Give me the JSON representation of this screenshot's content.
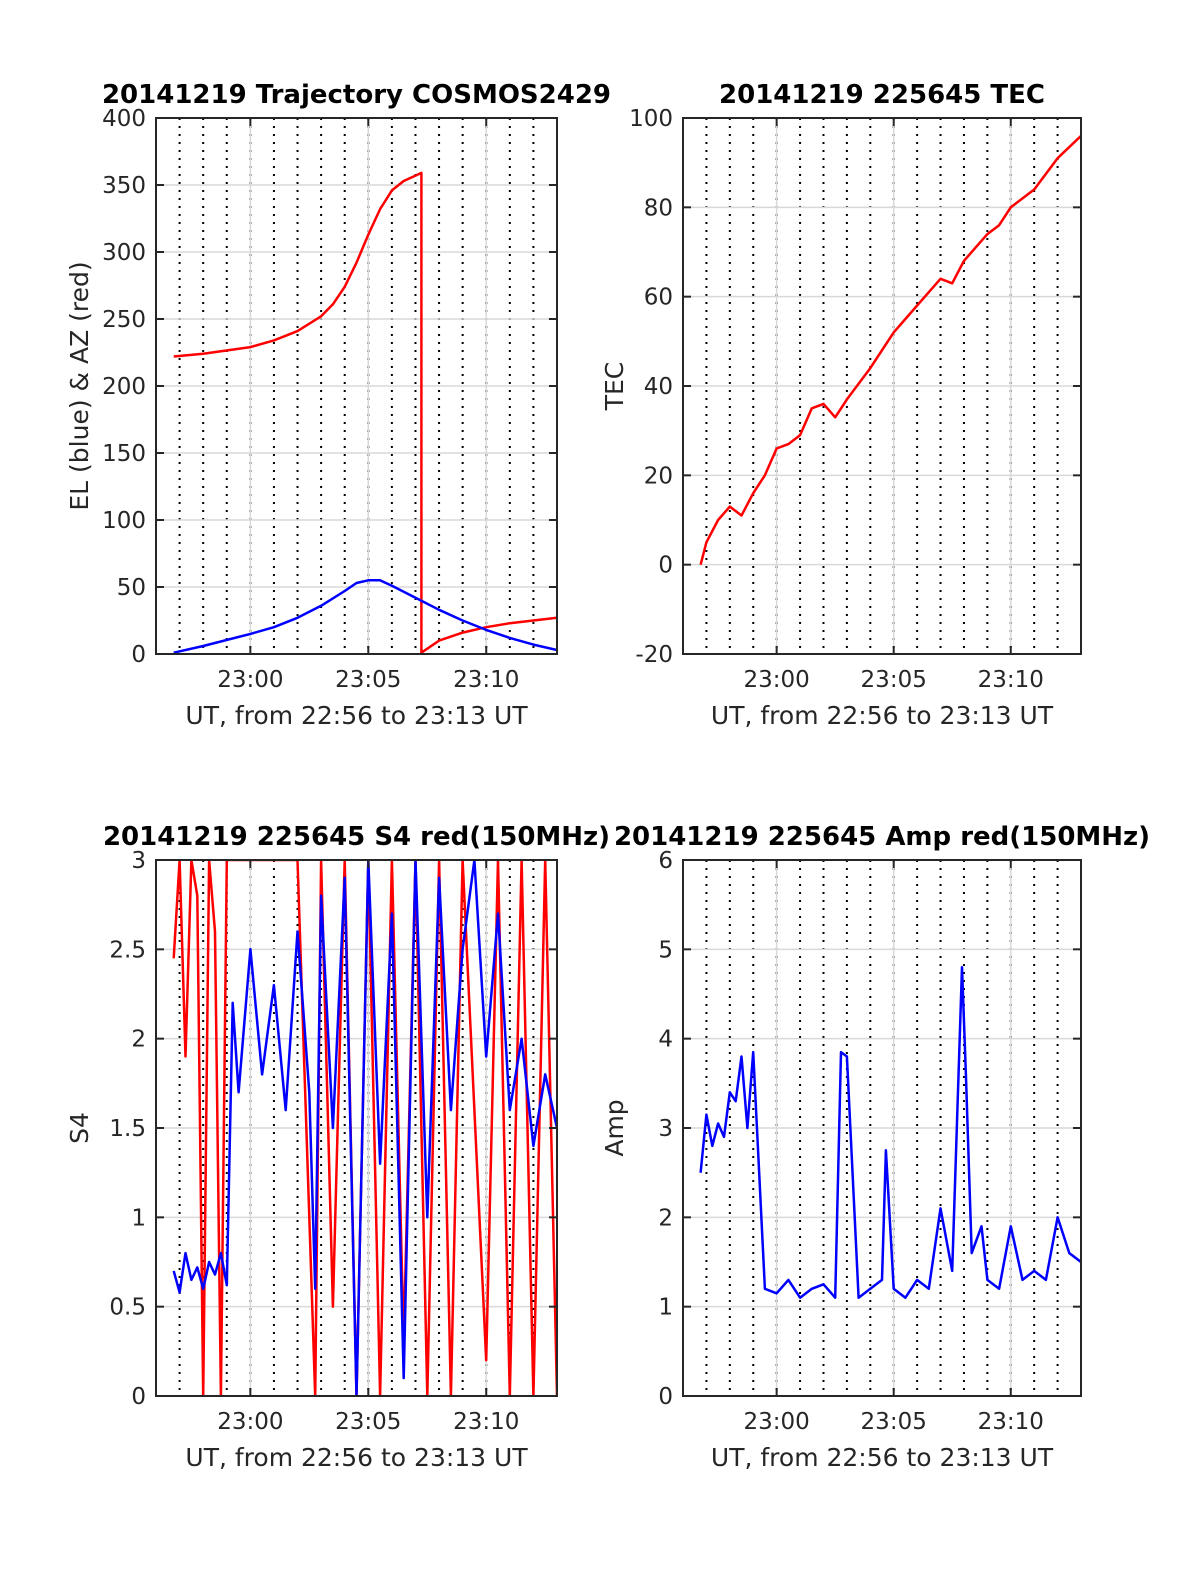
{
  "colors": {
    "red": "#ff0000",
    "blue": "#0000ff",
    "grid": "#d9d9d9",
    "axis": "#262626"
  },
  "x_axis_common": {
    "label": "UT, from 22:56 to 23:13 UT",
    "tick_labels": [
      "23:00",
      "23:05",
      "23:10"
    ]
  },
  "chart_data": [
    {
      "type": "line",
      "title": "20141219 Trajectory COSMOS2429",
      "xlabel": "UT, from 22:56 to 23:13 UT",
      "ylabel": "EL (blue) & AZ (red)",
      "xlim": [
        "22:56:00",
        "23:13:00"
      ],
      "ylim": [
        0,
        400
      ],
      "yticks": [
        0,
        50,
        100,
        150,
        200,
        250,
        300,
        350,
        400
      ],
      "xticks": [
        "23:00",
        "23:05",
        "23:10"
      ],
      "grid": true,
      "series": [
        {
          "color": "red",
          "x": [
            "22:56:45",
            "22:58:00",
            "23:00:00",
            "23:01:00",
            "23:02:00",
            "23:03:00",
            "23:03:30",
            "23:04:00",
            "23:04:30",
            "23:05:00",
            "23:05:30",
            "23:06:00",
            "23:06:30",
            "23:07:00",
            "23:07:15",
            "23:07:15",
            "23:08:00",
            "23:09:00",
            "23:10:00",
            "23:11:00",
            "23:12:00",
            "23:13:00"
          ],
          "y": [
            222,
            224,
            229,
            234,
            241,
            252,
            261,
            274,
            292,
            313,
            332,
            346,
            353,
            357,
            359,
            1,
            10,
            16,
            20,
            23,
            25,
            27
          ]
        },
        {
          "color": "blue",
          "x": [
            "22:56:45",
            "22:58:00",
            "23:00:00",
            "23:01:00",
            "23:02:00",
            "23:03:00",
            "23:04:00",
            "23:04:30",
            "23:05:00",
            "23:05:30",
            "23:06:00",
            "23:07:00",
            "23:08:00",
            "23:09:00",
            "23:10:00",
            "23:11:00",
            "23:12:00",
            "23:13:00"
          ],
          "y": [
            1,
            6,
            15,
            20,
            27,
            36,
            47,
            53,
            55,
            55,
            51,
            42,
            33,
            25,
            18,
            12,
            7,
            3
          ]
        }
      ]
    },
    {
      "type": "line",
      "title": "20141219 225645 TEC",
      "xlabel": "UT, from 22:56 to 23:13 UT",
      "ylabel": "TEC",
      "xlim": [
        "22:56:00",
        "23:13:00"
      ],
      "ylim": [
        -20,
        100
      ],
      "yticks": [
        -20,
        0,
        20,
        40,
        60,
        80,
        100
      ],
      "xticks": [
        "23:00",
        "23:05",
        "23:10"
      ],
      "grid": true,
      "series": [
        {
          "color": "red",
          "x": [
            "22:56:45",
            "22:57:00",
            "22:57:30",
            "22:58:00",
            "22:58:30",
            "22:59:00",
            "22:59:30",
            "23:00:00",
            "23:00:30",
            "23:01:00",
            "23:01:30",
            "23:02:00",
            "23:02:30",
            "23:03:00",
            "23:04:00",
            "23:05:00",
            "23:05:30",
            "23:06:00",
            "23:06:30",
            "23:07:00",
            "23:07:30",
            "23:08:00",
            "23:09:00",
            "23:09:30",
            "23:10:00",
            "23:10:30",
            "23:11:00",
            "23:12:00",
            "23:13:00"
          ],
          "y": [
            0,
            5,
            10,
            13,
            11,
            16,
            20,
            26,
            27,
            29,
            35,
            36,
            33,
            37,
            44,
            52,
            55,
            58,
            61,
            64,
            63,
            68,
            74,
            76,
            80,
            82,
            84,
            91,
            96
          ]
        }
      ]
    },
    {
      "type": "line",
      "title": "20141219 225645 S4 red(150MHz)",
      "xlabel": "UT, from 22:56 to 23:13 UT",
      "ylabel": "S4",
      "xlim": [
        "22:56:00",
        "23:13:00"
      ],
      "ylim": [
        0,
        3
      ],
      "yticks": [
        0,
        0.5,
        1,
        1.5,
        2,
        2.5,
        3
      ],
      "xticks": [
        "23:00",
        "23:05",
        "23:10"
      ],
      "grid": true,
      "series": [
        {
          "color": "red",
          "x": [
            "22:56:45",
            "22:57:00",
            "22:57:15",
            "22:57:30",
            "22:57:45",
            "22:58:00",
            "22:58:15",
            "22:58:30",
            "22:58:45",
            "22:59:00",
            "22:59:30",
            "23:00:00",
            "23:01:00",
            "23:02:00",
            "23:02:45",
            "23:03:00",
            "23:03:30",
            "23:04:00",
            "23:04:30",
            "23:05:00",
            "23:05:30",
            "23:06:00",
            "23:06:30",
            "23:07:00",
            "23:07:30",
            "23:08:00",
            "23:08:30",
            "23:09:00",
            "23:10:00",
            "23:10:30",
            "23:11:00",
            "23:11:30",
            "23:12:00",
            "23:12:30",
            "23:13:00"
          ],
          "y": [
            2.45,
            3.0,
            1.9,
            3.0,
            2.8,
            0.0,
            3.0,
            2.6,
            0.0,
            3.0,
            3.0,
            3.0,
            3.0,
            3.0,
            0.0,
            3.0,
            0.5,
            3.0,
            0.0,
            3.0,
            0.0,
            3.0,
            0.3,
            3.0,
            0.0,
            3.0,
            0.0,
            3.0,
            0.2,
            3.0,
            0.0,
            3.0,
            0.0,
            3.0,
            0.0
          ]
        },
        {
          "color": "blue",
          "x": [
            "22:56:45",
            "22:57:00",
            "22:57:15",
            "22:57:30",
            "22:57:45",
            "22:58:00",
            "22:58:15",
            "22:58:30",
            "22:58:45",
            "22:59:00",
            "22:59:15",
            "22:59:30",
            "23:00:00",
            "23:00:30",
            "23:01:00",
            "23:01:30",
            "23:02:00",
            "23:02:30",
            "23:02:45",
            "23:03:00",
            "23:03:30",
            "23:04:00",
            "23:04:30",
            "23:05:00",
            "23:05:30",
            "23:06:00",
            "23:06:30",
            "23:07:00",
            "23:07:30",
            "23:08:00",
            "23:08:30",
            "23:09:00",
            "23:09:30",
            "23:10:00",
            "23:10:30",
            "23:11:00",
            "23:11:30",
            "23:12:00",
            "23:12:30",
            "23:13:00"
          ],
          "y": [
            0.7,
            0.58,
            0.8,
            0.65,
            0.72,
            0.6,
            0.75,
            0.68,
            0.8,
            0.62,
            2.2,
            1.7,
            2.5,
            1.8,
            2.3,
            1.6,
            2.6,
            1.7,
            0.6,
            2.8,
            1.5,
            2.9,
            0.0,
            3.0,
            1.3,
            2.7,
            0.1,
            3.0,
            1.0,
            2.9,
            1.6,
            2.5,
            3.0,
            1.9,
            2.7,
            1.6,
            2.0,
            1.4,
            1.8,
            1.5
          ]
        }
      ]
    },
    {
      "type": "line",
      "title": "20141219 225645 Amp red(150MHz)",
      "xlabel": "UT, from 22:56 to 23:13 UT",
      "ylabel": "Amp",
      "xlim": [
        "22:56:00",
        "23:13:00"
      ],
      "ylim": [
        0,
        6
      ],
      "yticks": [
        0,
        1,
        2,
        3,
        4,
        5,
        6
      ],
      "xticks": [
        "23:00",
        "23:05",
        "23:10"
      ],
      "grid": true,
      "series": [
        {
          "color": "blue",
          "x": [
            "22:56:45",
            "22:57:00",
            "22:57:15",
            "22:57:30",
            "22:57:45",
            "22:58:00",
            "22:58:15",
            "22:58:30",
            "22:58:45",
            "22:59:00",
            "22:59:30",
            "23:00:00",
            "23:00:30",
            "23:01:00",
            "23:01:30",
            "23:02:00",
            "23:02:30",
            "23:02:45",
            "23:03:00",
            "23:03:30",
            "23:04:00",
            "23:04:30",
            "23:04:40",
            "23:05:00",
            "23:05:30",
            "23:06:00",
            "23:06:30",
            "23:07:00",
            "23:07:30",
            "23:07:55",
            "23:08:05",
            "23:08:20",
            "23:08:45",
            "23:09:00",
            "23:09:30",
            "23:10:00",
            "23:10:30",
            "23:11:00",
            "23:11:30",
            "23:12:00",
            "23:12:30",
            "23:13:00"
          ],
          "y": [
            2.5,
            3.15,
            2.8,
            3.05,
            2.9,
            3.4,
            3.3,
            3.8,
            3.0,
            3.85,
            1.2,
            1.15,
            1.3,
            1.1,
            1.2,
            1.25,
            1.1,
            3.85,
            3.8,
            1.1,
            1.2,
            1.3,
            2.75,
            1.2,
            1.1,
            1.3,
            1.2,
            2.1,
            1.4,
            4.8,
            3.6,
            1.6,
            1.9,
            1.3,
            1.2,
            1.9,
            1.3,
            1.4,
            1.3,
            2.0,
            1.6,
            1.5
          ]
        }
      ]
    }
  ]
}
